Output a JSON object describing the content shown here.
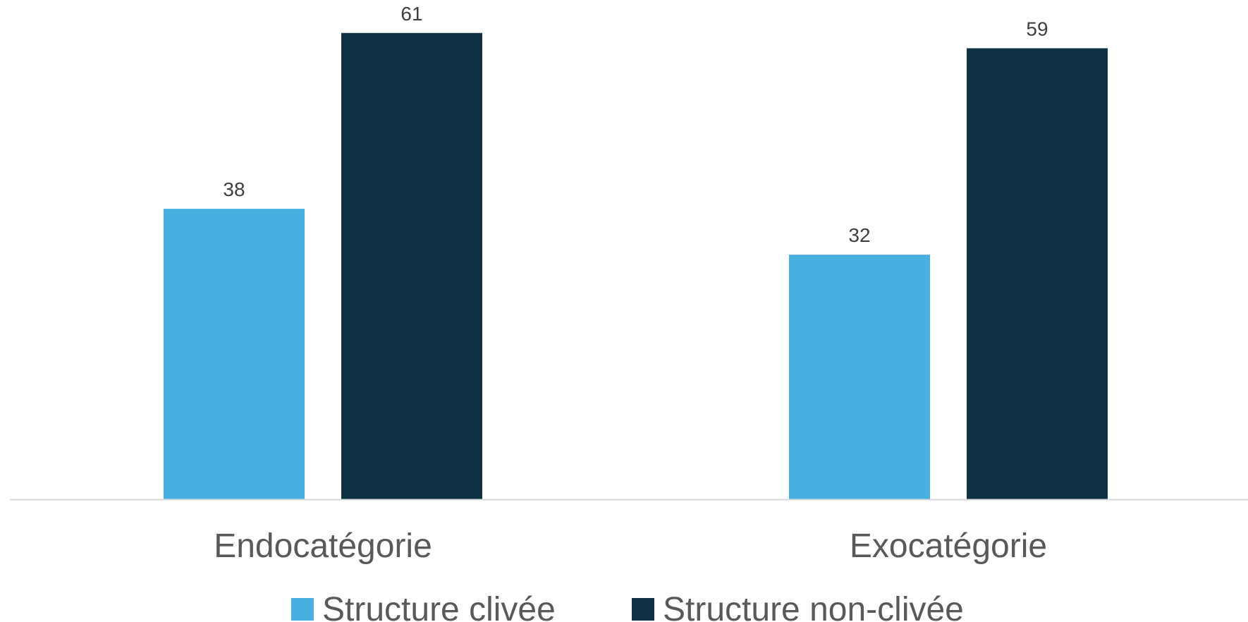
{
  "chart_data": {
    "type": "bar",
    "title": "",
    "xlabel": "",
    "ylabel": "",
    "categories": [
      "Endocatégorie",
      "Exocatégorie"
    ],
    "series": [
      {
        "name": "Structure clivée",
        "values": [
          38,
          32
        ],
        "color": "#48B0E0"
      },
      {
        "name": "Structure non-clivée",
        "values": [
          61,
          59
        ],
        "color": "#0E3144"
      }
    ],
    "ylim": [
      0,
      66
    ],
    "grid": false,
    "legend_position": "bottom",
    "data_labels": true,
    "axis_color": "#D9D9D9"
  }
}
